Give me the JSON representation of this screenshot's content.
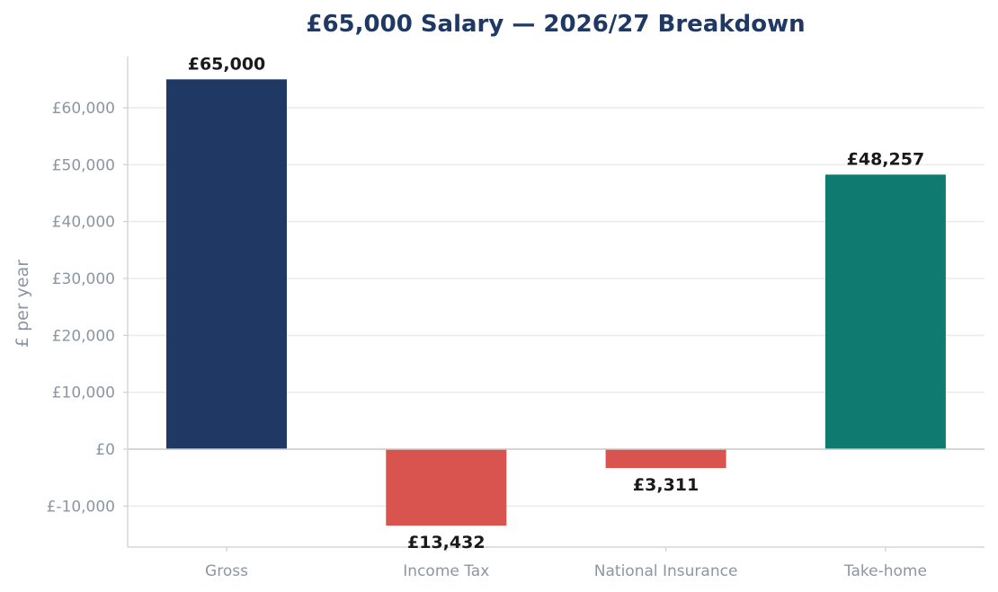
{
  "chart_data": {
    "type": "bar",
    "title": "£65,000 Salary — 2026/27 Breakdown",
    "xlabel": "",
    "ylabel": "£ per year",
    "categories": [
      "Gross",
      "Income Tax",
      "National Insurance",
      "Take-home"
    ],
    "values": [
      65000,
      -13432,
      -3311,
      48257
    ],
    "data_labels": [
      "£65,000",
      "£13,432",
      "£3,311",
      "£48,257"
    ],
    "colors": [
      "#203864",
      "#d9534f",
      "#d9534f",
      "#0e7a70"
    ],
    "yticks": [
      -10000,
      0,
      10000,
      20000,
      30000,
      40000,
      50000,
      60000
    ],
    "ytick_labels": [
      "£-10,000",
      "£0",
      "£10,000",
      "£20,000",
      "£30,000",
      "£40,000",
      "£50,000",
      "£60,000"
    ],
    "ylim": [
      -17200,
      68800
    ],
    "grid": "horizontal",
    "legend": "none"
  }
}
